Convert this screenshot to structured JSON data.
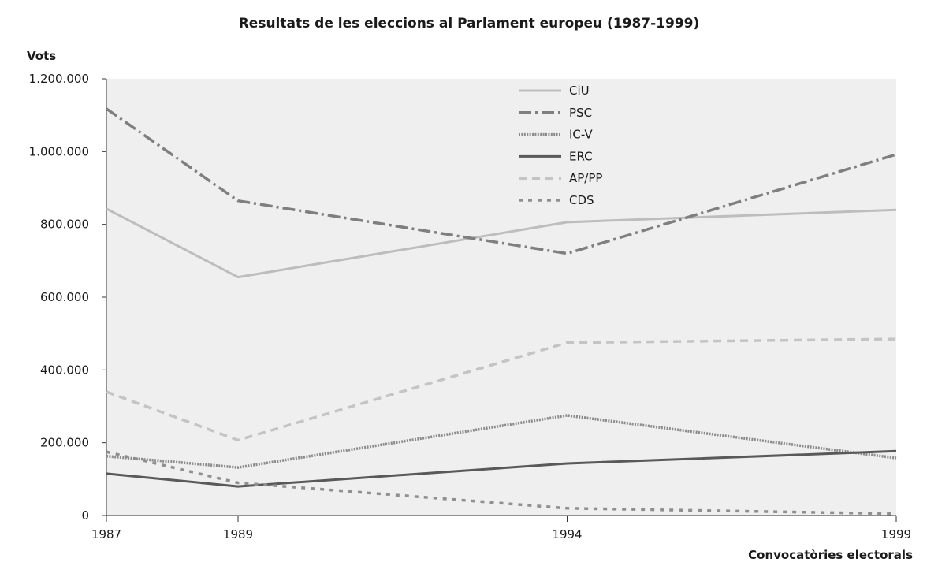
{
  "chart_data": {
    "type": "line",
    "title": "Resultats de les eleccions al Parlament europeu (1987-1999)",
    "xlabel": "Convocatòries electorals",
    "ylabel": "Vots",
    "x": [
      1987,
      1989,
      1994,
      1999
    ],
    "x_tick_labels": [
      "1987",
      "1989",
      "1994",
      "1999"
    ],
    "ylim": [
      0,
      1200000
    ],
    "y_ticks": [
      0,
      200000,
      400000,
      600000,
      800000,
      1000000,
      1200000
    ],
    "y_tick_labels": [
      "0",
      "200.000",
      "400.000",
      "600.000",
      "800.000",
      "1.000.000",
      "1.200.000"
    ],
    "grid": false,
    "legend_position": "top-center",
    "series": [
      {
        "name": "CiU",
        "values": [
          843000,
          655000,
          806000,
          840000
        ],
        "color": "#bdbdbd",
        "style": "solid"
      },
      {
        "name": "PSC",
        "values": [
          1118000,
          865000,
          720000,
          992000
        ],
        "color": "#7f7f7f",
        "style": "dashdot"
      },
      {
        "name": "IC-V",
        "values": [
          163000,
          132000,
          275000,
          158000
        ],
        "color": "#8a8a8a",
        "style": "dotted"
      },
      {
        "name": "ERC",
        "values": [
          115000,
          80000,
          143000,
          177000
        ],
        "color": "#595959",
        "style": "solid"
      },
      {
        "name": "AP/PP",
        "values": [
          340000,
          207000,
          475000,
          485000
        ],
        "color": "#c4c4c4",
        "style": "dashed"
      },
      {
        "name": "CDS",
        "values": [
          175000,
          90000,
          20000,
          5000
        ],
        "color": "#8f8f8f",
        "style": "dashed-short"
      }
    ]
  }
}
